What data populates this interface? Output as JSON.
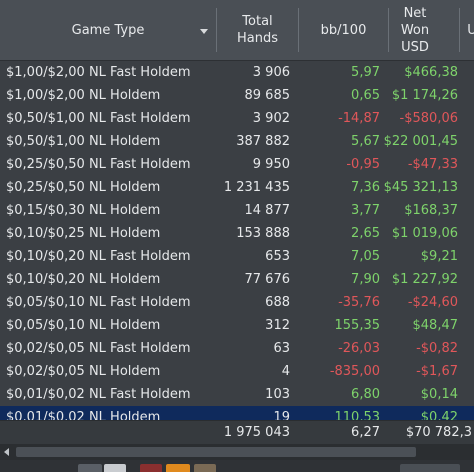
{
  "header": {
    "game_type": "Game Type",
    "total_hands": "Total\nHands",
    "bb100": "bb/100",
    "net_won": "Net\nWon\nUSD",
    "extra": "U"
  },
  "rows": [
    {
      "game": "$1,00/$2,00 NL Fast Holdem",
      "hands": "3 906",
      "bb": "5,97",
      "net": "$466,38",
      "bbSign": "pos",
      "netSign": "pos"
    },
    {
      "game": "$1,00/$2,00 NL Holdem",
      "hands": "89 685",
      "bb": "0,65",
      "net": "$1 174,26",
      "bbSign": "pos",
      "netSign": "pos"
    },
    {
      "game": "$0,50/$1,00 NL Fast Holdem",
      "hands": "3 902",
      "bb": "-14,87",
      "net": "-$580,06",
      "bbSign": "neg",
      "netSign": "neg"
    },
    {
      "game": "$0,50/$1,00 NL Holdem",
      "hands": "387 882",
      "bb": "5,67",
      "net": "$22 001,45",
      "bbSign": "pos",
      "netSign": "pos"
    },
    {
      "game": "$0,25/$0,50 NL Fast Holdem",
      "hands": "9 950",
      "bb": "-0,95",
      "net": "-$47,33",
      "bbSign": "neg",
      "netSign": "neg"
    },
    {
      "game": "$0,25/$0,50 NL Holdem",
      "hands": "1 231 435",
      "bb": "7,36",
      "net": "$45 321,13",
      "bbSign": "pos",
      "netSign": "pos"
    },
    {
      "game": "$0,15/$0,30 NL Holdem",
      "hands": "14 877",
      "bb": "3,77",
      "net": "$168,37",
      "bbSign": "pos",
      "netSign": "pos"
    },
    {
      "game": "$0,10/$0,25 NL Holdem",
      "hands": "153 888",
      "bb": "2,65",
      "net": "$1 019,06",
      "bbSign": "pos",
      "netSign": "pos"
    },
    {
      "game": "$0,10/$0,20 NL Fast Holdem",
      "hands": "653",
      "bb": "7,05",
      "net": "$9,21",
      "bbSign": "pos",
      "netSign": "pos"
    },
    {
      "game": "$0,10/$0,20 NL Holdem",
      "hands": "77 676",
      "bb": "7,90",
      "net": "$1 227,92",
      "bbSign": "pos",
      "netSign": "pos"
    },
    {
      "game": "$0,05/$0,10 NL Fast Holdem",
      "hands": "688",
      "bb": "-35,76",
      "net": "-$24,60",
      "bbSign": "neg",
      "netSign": "neg"
    },
    {
      "game": "$0,05/$0,10 NL Holdem",
      "hands": "312",
      "bb": "155,35",
      "net": "$48,47",
      "bbSign": "pos",
      "netSign": "pos"
    },
    {
      "game": "$0,02/$0,05 NL Fast Holdem",
      "hands": "63",
      "bb": "-26,03",
      "net": "-$0,82",
      "bbSign": "neg",
      "netSign": "neg"
    },
    {
      "game": "$0,02/$0,05 NL Holdem",
      "hands": "4",
      "bb": "-835,00",
      "net": "-$1,67",
      "bbSign": "neg",
      "netSign": "neg"
    },
    {
      "game": "$0,01/$0,02 NL Fast Holdem",
      "hands": "103",
      "bb": "6,80",
      "net": "$0,14",
      "bbSign": "pos",
      "netSign": "pos"
    },
    {
      "game": "$0,01/$0,02 NL Holdem",
      "hands": "19",
      "bb": "110,53",
      "net": "$0,42",
      "bbSign": "pos",
      "netSign": "pos",
      "selected": true
    }
  ],
  "totals": {
    "hands": "1 975 043",
    "bb": "6,27",
    "net": "$70 782,3"
  },
  "colors": {
    "positive": "#7ed36b",
    "negative": "#e0575a",
    "selected_row": "#0f2a5c"
  }
}
